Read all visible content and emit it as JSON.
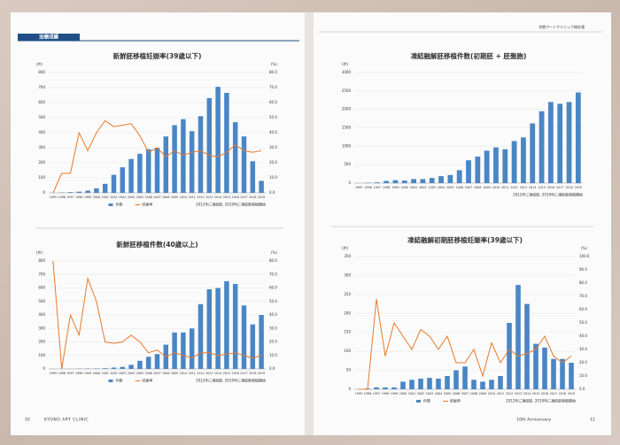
{
  "page": {
    "section": "治療成績",
    "header_right": "京野アートクリニック統計値",
    "left_page_number": "10",
    "left_footer": "KYONO ART CLINIC",
    "right_footer": "10th Anniversary",
    "right_page_number": "11"
  },
  "chart_data": [
    {
      "type": "bar-line",
      "title": "新鮮胚移植妊娠率(39歳以下)",
      "y_label": "(件)",
      "y2_label": "(%)",
      "note": "2012年に凍結胚, 2019年に凍結胚移植開始",
      "categories": [
        "1995",
        "1996",
        "1997",
        "1998",
        "1999",
        "2000",
        "2001",
        "2002",
        "2003",
        "2004",
        "2005",
        "2006",
        "2007",
        "2008",
        "2009",
        "2010",
        "2011",
        "2012",
        "2013",
        "2014",
        "2015",
        "2016",
        "2017",
        "2018",
        "2019"
      ],
      "series": [
        {
          "name": "件数",
          "color": "#4a86c5",
          "type": "bar",
          "values": [
            0,
            2,
            5,
            8,
            15,
            30,
            60,
            120,
            170,
            225,
            260,
            290,
            300,
            375,
            450,
            490,
            410,
            510,
            630,
            705,
            665,
            470,
            375,
            210,
            80
          ]
        },
        {
          "name": "妊娠率",
          "color": "#e8792a",
          "type": "line",
          "axis": "y2",
          "values": [
            0,
            13,
            13,
            40,
            28,
            40,
            48,
            44,
            45,
            46,
            38,
            27,
            30,
            24,
            28,
            25,
            27,
            28,
            25,
            24,
            27,
            32,
            28,
            27,
            28
          ]
        }
      ],
      "ylim": [
        0,
        800
      ],
      "yticks": [
        0,
        100,
        200,
        300,
        400,
        500,
        600,
        700,
        800
      ],
      "y2lim": [
        0,
        80
      ],
      "y2ticks": [
        {
          "value": 0,
          "label": "0.0"
        },
        {
          "value": 10,
          "label": "10.0"
        },
        {
          "value": 20,
          "label": "20.0"
        },
        {
          "value": 30,
          "label": "30.0"
        },
        {
          "value": 40,
          "label": "40.0"
        },
        {
          "value": 50,
          "label": "50.0"
        },
        {
          "value": 60,
          "label": "60.0"
        },
        {
          "value": 70,
          "label": "70.0"
        },
        {
          "value": 80,
          "label": "80.0"
        }
      ]
    },
    {
      "type": "bar",
      "title": "凍結融解胚移植件数(初期胚 + 胚盤胞)",
      "y_label": "(件)",
      "note": "2012年に凍結胚, 2019年に凍結胚移植開始",
      "categories": [
        "1995",
        "1996",
        "1997",
        "1998",
        "1999",
        "2000",
        "2001",
        "2002",
        "2003",
        "2004",
        "2005",
        "2006",
        "2007",
        "2008",
        "2009",
        "2010",
        "2011",
        "2012",
        "2013",
        "2014",
        "2015",
        "2016",
        "2017",
        "2018",
        "2019"
      ],
      "series": [
        {
          "color": "#4a86c5",
          "type": "bar",
          "values": [
            0,
            10,
            20,
            60,
            80,
            70,
            110,
            110,
            140,
            190,
            220,
            350,
            620,
            720,
            880,
            970,
            920,
            1140,
            1240,
            1620,
            1950,
            2200,
            2150,
            2200,
            2460
          ]
        }
      ],
      "ylim": [
        0,
        3000
      ],
      "yticks": [
        0,
        500,
        1000,
        1500,
        2000,
        2500,
        3000
      ]
    },
    {
      "type": "bar-line",
      "title": "新鮮胚移植件数(40歳以上)",
      "y_label": "(件)",
      "y2_label": "(%)",
      "note": "2012年に凍結胚, 2019年に凍結胚移植開始",
      "categories": [
        "1995",
        "1996",
        "1997",
        "1998",
        "1999",
        "2000",
        "2001",
        "2002",
        "2003",
        "2004",
        "2005",
        "2006",
        "2007",
        "2008",
        "2009",
        "2010",
        "2011",
        "2012",
        "2013",
        "2014",
        "2015",
        "2016",
        "2017",
        "2018",
        "2019"
      ],
      "series": [
        {
          "name": "件数",
          "color": "#4a86c5",
          "type": "bar",
          "values": [
            0,
            0,
            1,
            2,
            3,
            3,
            5,
            10,
            15,
            30,
            60,
            90,
            110,
            180,
            270,
            270,
            300,
            480,
            590,
            600,
            650,
            630,
            470,
            330,
            400
          ]
        },
        {
          "name": "妊娠率",
          "color": "#e8792a",
          "type": "line",
          "axis": "y2",
          "values": [
            80,
            0,
            40,
            25,
            67,
            50,
            20,
            19,
            20,
            25,
            20,
            12,
            14,
            9,
            12,
            10,
            8,
            12,
            12,
            10,
            11,
            12,
            10,
            8,
            10
          ]
        }
      ],
      "ylim": [
        0,
        800
      ],
      "yticks": [
        0,
        100,
        200,
        300,
        400,
        500,
        600,
        700,
        800
      ],
      "y2lim": [
        0,
        80
      ],
      "y2ticks": [
        {
          "value": 0,
          "label": "0.0"
        },
        {
          "value": 10,
          "label": "10.0"
        },
        {
          "value": 20,
          "label": "20.0"
        },
        {
          "value": 30,
          "label": "30.0"
        },
        {
          "value": 40,
          "label": "40.0"
        },
        {
          "value": 50,
          "label": "50.0"
        },
        {
          "value": 60,
          "label": "60.0"
        },
        {
          "value": 70,
          "label": "70.0"
        },
        {
          "value": 80,
          "label": "80.0"
        }
      ]
    },
    {
      "type": "bar-line",
      "title": "凍結融解初期胚移植妊娠率(39歳以下)",
      "y_label": "(件)",
      "y2_label": "(%)",
      "note": "2012年に凍結胚, 2019年に凍結胚移植開始",
      "categories": [
        "1995",
        "1996",
        "1997",
        "1998",
        "1999",
        "2000",
        "2001",
        "2002",
        "2003",
        "2004",
        "2005",
        "2006",
        "2007",
        "2008",
        "2009",
        "2010",
        "2011",
        "2012",
        "2013",
        "2014",
        "2015",
        "2016",
        "2017",
        "2018",
        "2019"
      ],
      "series": [
        {
          "name": "件数",
          "color": "#4a86c5",
          "type": "bar",
          "values": [
            0,
            2,
            5,
            5,
            5,
            20,
            25,
            28,
            30,
            28,
            35,
            50,
            60,
            25,
            20,
            25,
            35,
            175,
            275,
            225,
            120,
            110,
            80,
            80,
            70
          ]
        },
        {
          "name": "妊娠率",
          "color": "#e8792a",
          "type": "line",
          "axis": "y2",
          "values": [
            0,
            0,
            68,
            25,
            50,
            40,
            30,
            45,
            40,
            30,
            40,
            20,
            20,
            30,
            10,
            35,
            20,
            30,
            25,
            27,
            30,
            40,
            25,
            20,
            25
          ]
        }
      ],
      "ylim": [
        0,
        350
      ],
      "yticks": [
        0,
        50,
        100,
        150,
        200,
        250,
        300,
        350
      ],
      "y2lim": [
        0,
        100
      ],
      "y2ticks": [
        {
          "value": 0,
          "label": "0.0"
        },
        {
          "value": 10,
          "label": "10.0"
        },
        {
          "value": 20,
          "label": "20.0"
        },
        {
          "value": 30,
          "label": "30.0"
        },
        {
          "value": 40,
          "label": "40.0"
        },
        {
          "value": 50,
          "label": "50.0"
        },
        {
          "value": 60,
          "label": "60.0"
        },
        {
          "value": 70,
          "label": "70.0"
        },
        {
          "value": 80,
          "label": "80.0"
        },
        {
          "value": 90,
          "label": "90.0"
        },
        {
          "value": 100,
          "label": "100.0"
        }
      ]
    }
  ]
}
